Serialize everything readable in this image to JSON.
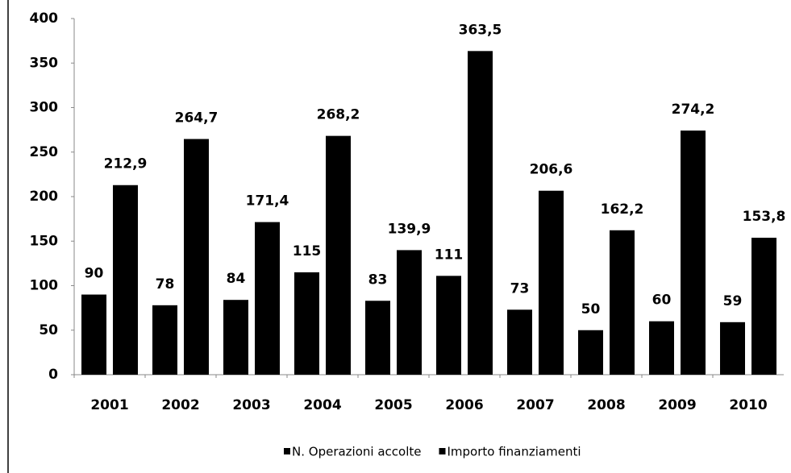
{
  "chart_data": {
    "type": "bar",
    "categories": [
      "2001",
      "2002",
      "2003",
      "2004",
      "2005",
      "2006",
      "2007",
      "2008",
      "2009",
      "2010"
    ],
    "series": [
      {
        "name": "N. Operazioni  accolte",
        "color": "#000000",
        "values": [
          90,
          78,
          84,
          115,
          83,
          111,
          73,
          50,
          60,
          59
        ]
      },
      {
        "name": "Importo finanziamenti",
        "color": "#000000",
        "values": [
          212.9,
          264.7,
          171.4,
          268.2,
          139.9,
          363.5,
          206.6,
          162.2,
          274.2,
          153.8
        ],
        "value_labels": [
          "212,9",
          "264,7",
          "171,4",
          "268,2",
          "139,9",
          "363,5",
          "206,6",
          "162,2",
          "274,2",
          "153,8"
        ]
      }
    ],
    "ylim": [
      0,
      400
    ],
    "yticks": [
      0,
      50,
      100,
      150,
      200,
      250,
      300,
      350,
      400
    ],
    "legend": "bottom",
    "grid": false
  }
}
